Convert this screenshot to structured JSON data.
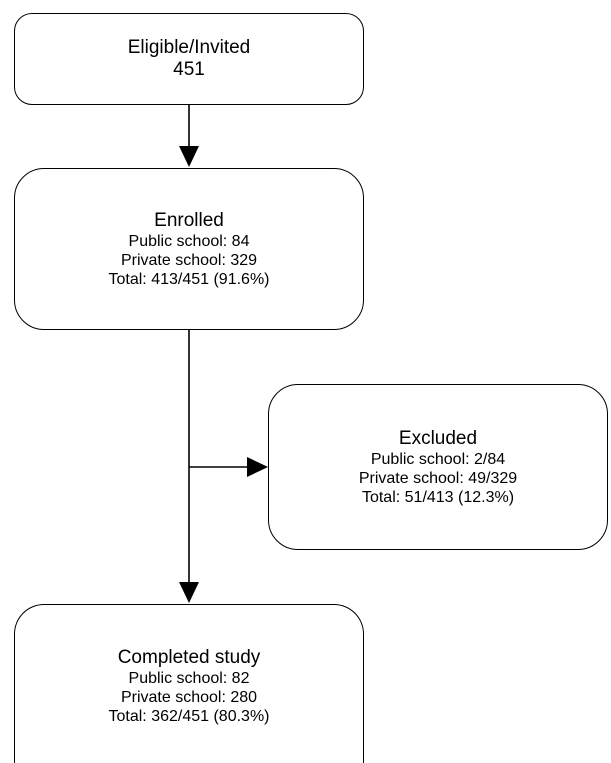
{
  "invited": {
    "title": "Eligible/Invited",
    "count": "451"
  },
  "enrolled": {
    "title": "Enrolled",
    "public": "Public school: 84",
    "private": "Private school: 329",
    "total": "Total: 413/451 (91.6%)"
  },
  "excluded": {
    "title": "Excluded",
    "public": "Public school: 2/84",
    "private": "Private school: 49/329",
    "total": "Total: 51/413 (12.3%)"
  },
  "completed": {
    "title": "Completed study",
    "public": "Public school: 82",
    "private": "Private school: 280",
    "total": "Total: 362/451 (80.3%)"
  }
}
